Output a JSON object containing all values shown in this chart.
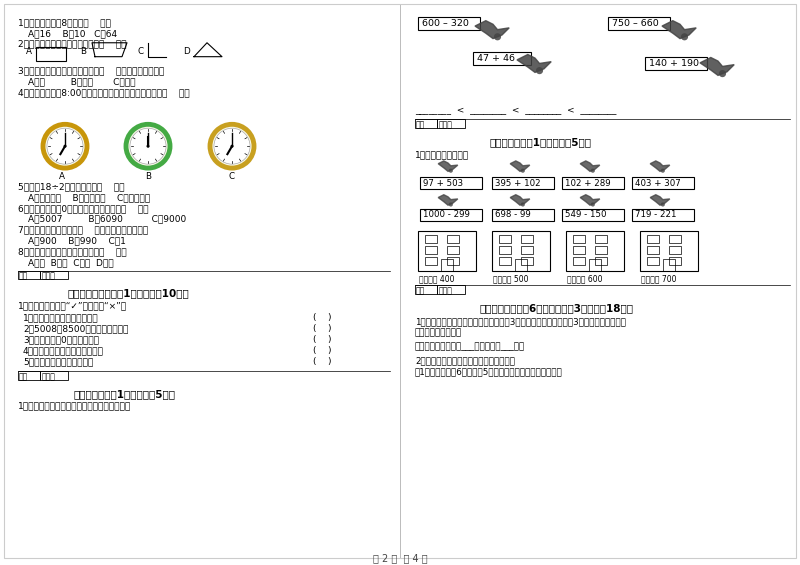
{
  "bg_color": "#ffffff",
  "page_footer": "第 2 页  共 4 页",
  "left_col": {
    "q1": "1、两个乘数都是8，积是（    ）。",
    "q1_opts": "A、16    B、10   C、64",
    "q2": "2、下列图形中，有二个直角的是（    ）。",
    "q3": "3、估计量从上海到北京的路程用（    ）作单位比较合适。",
    "q3_opts": "A、米         B、分米       C、千米",
    "q4": "4、我们每天早上8:00上课，下面表示上课前一小时的是（    ）。",
    "q5": "5、计算18÷2时用的口诀是（    ）。",
    "q5_opts": "A、二九十八    B、三六十八    C、二六十二",
    "q6": "6、下面各数一个0都不需要读出来的数是（    ）。",
    "q6_opts": "A、5007         B、6090          C　9000",
    "q7": "7、最大的三位数再加上（    ）就是最小的四位数。",
    "q7_opts": "A、900    B、990    C、1",
    "q8": "8、可以用来量物体长度单位的是（    ）。",
    "q8_opts": "A、时  B、角  C、分  D、米",
    "sec5_title": "五、判断对与错（共1大题，共脗10分）",
    "sec5_intro": "1、判断。（对的打“✓”，错的打“×”）",
    "sec5_items": [
      "1、从左边起，第四位是万位。",
      "2、5008、8500是一个零也不读。",
      "3、整数末尾的0一般都不读。",
      "4、所有的四位数都比三位数大。",
      "5、近似数一般比准确数小。"
    ],
    "sec6_title": "六、比一比（共1大题，共腱5分）",
    "sec6_item": "1、把下列算式按得数大小，从小到大排一排。"
  },
  "right_col": {
    "sec_math_exprs": [
      "600 - 320",
      "750 - 660",
      "47 + 46",
      "140 + 190"
    ],
    "comparison_line": "_______ < _______ < _______ < _______",
    "sec7_title": "七、连一连（共1大题，共腱5分）",
    "sec7_intro": "1、估一估，连一连。",
    "sec7_top": [
      "97 + 503",
      "395 + 102",
      "102 + 289",
      "403 + 307"
    ],
    "sec7_bottom": [
      "1000 - 299",
      "698 - 99",
      "549 - 150",
      "719 - 221"
    ],
    "building_labels": [
      "得数接近 400",
      "得数大约 500",
      "得数接近 600",
      "得数大约 700"
    ],
    "sec8_title": "八、解决问题（共6小题，每题\u00033分，共脗18分）",
    "sec8_q1a": "1、绻化带有棵树，松树的棵数是柏树的3倍，柏树的棵数是杨树的3倍，绻化带中有松树",
    "sec8_q1b": "几棵？有杨树几棵？",
    "sec8_ans1": "答：绻化带中有松树___棵，有杨树___棵。",
    "sec8_q2": "2、比较下面两题，选择合适的方法解答。",
    "sec8_q2a": "（1）一张饭桌配6把椅子，5张这样的饭桌要配多少把椅子？"
  }
}
